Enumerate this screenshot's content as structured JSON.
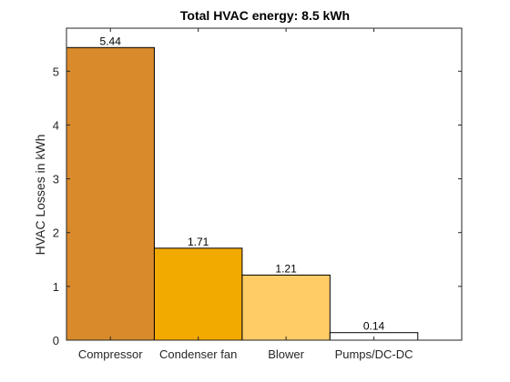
{
  "chart_data": {
    "type": "bar",
    "title": "Total HVAC energy: 8.5 kWh",
    "xlabel": "",
    "ylabel": "HVAC Losses in kWh",
    "categories": [
      "Compressor",
      "Condenser fan",
      "Blower",
      "Pumps/DC-DC"
    ],
    "values": [
      5.44,
      1.71,
      1.21,
      0.14
    ],
    "data_labels": [
      "5.44",
      "1.71",
      "1.21",
      "0.14"
    ],
    "ylim": [
      0,
      5.8
    ],
    "yticks": [
      0,
      1,
      2,
      3,
      4,
      5
    ],
    "ytick_labels": [
      "0",
      "1",
      "2",
      "3",
      "4",
      "5"
    ],
    "bar_colors": [
      "#D98A2B",
      "#F2A900",
      "#FFCC66",
      "#FFFFFF"
    ],
    "grid": false,
    "legend": "none"
  }
}
